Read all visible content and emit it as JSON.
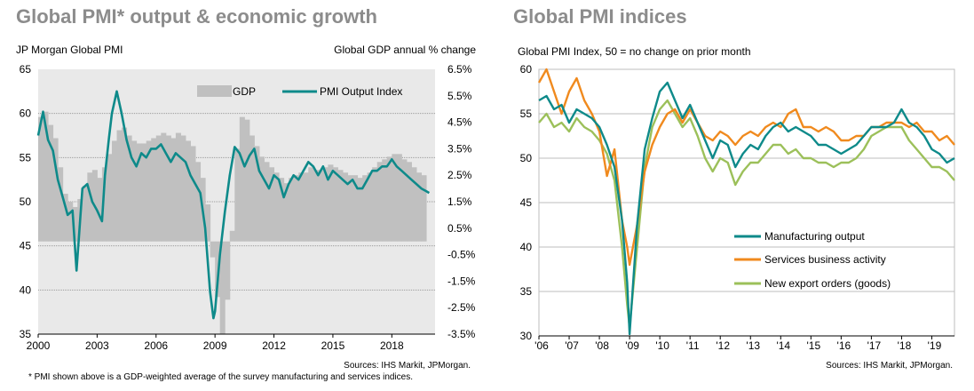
{
  "left": {
    "heading": "Global PMI* output & economic growth",
    "subtitle_left": "JP Morgan Global PMI",
    "subtitle_right": "Global GDP annual % change",
    "source": "Sources: IHS Markit, JPMorgan.",
    "footnote": "* PMI shown above is a GDP-weighted average of the survey manufacturing and services indices.",
    "colors": {
      "gdp": "#c0c0c0",
      "pmi": "#0e8a8a"
    }
  },
  "right": {
    "heading": "Global PMI indices",
    "subtitle": "Global PMI Index, 50 = no change on prior month",
    "source": "Sources: IHS Markit, JPMorgan.",
    "colors": {
      "mfg": "#0e8a8a",
      "svc": "#f08a1e",
      "exp": "#9cc05a"
    }
  },
  "chart_data": [
    {
      "type": "bar+line",
      "title": "Global PMI* output & economic growth",
      "ylabel_left": "JP Morgan Global PMI",
      "ylabel_right": "Global GDP annual % change",
      "ylim_left": [
        35,
        65
      ],
      "yticks_left": [
        "35",
        "40",
        "45",
        "50",
        "55",
        "60",
        "65"
      ],
      "ylim_right": [
        -3.5,
        6.5
      ],
      "yticks_right": [
        "-3.5%",
        "-2.5%",
        "-1.5%",
        "-0.5%",
        "0.5%",
        "1.5%",
        "2.5%",
        "3.5%",
        "4.5%",
        "5.5%",
        "6.5%"
      ],
      "xlim": [
        2000,
        2020.2
      ],
      "xticks": [
        "2000",
        "2003",
        "2006",
        "2009",
        "2012",
        "2015",
        "2018"
      ],
      "grid": "horizontal",
      "legend": [
        "GDP",
        "PMI Output Index"
      ],
      "legend_position": "top-right",
      "series": [
        {
          "name": "GDP",
          "kind": "bar",
          "x": [
            2000.0,
            2000.25,
            2000.5,
            2000.75,
            2001.0,
            2001.25,
            2001.5,
            2001.75,
            2002.0,
            2002.25,
            2002.5,
            2002.75,
            2003.0,
            2003.25,
            2003.5,
            2003.75,
            2004.0,
            2004.25,
            2004.5,
            2004.75,
            2005.0,
            2005.25,
            2005.5,
            2005.75,
            2006.0,
            2006.25,
            2006.5,
            2006.75,
            2007.0,
            2007.25,
            2007.5,
            2007.75,
            2008.0,
            2008.25,
            2008.5,
            2008.75,
            2009.0,
            2009.25,
            2009.5,
            2009.75,
            2010.0,
            2010.25,
            2010.5,
            2010.75,
            2011.0,
            2011.25,
            2011.5,
            2011.75,
            2012.0,
            2012.25,
            2012.5,
            2012.75,
            2013.0,
            2013.25,
            2013.5,
            2013.75,
            2014.0,
            2014.25,
            2014.5,
            2014.75,
            2015.0,
            2015.25,
            2015.5,
            2015.75,
            2016.0,
            2016.25,
            2016.5,
            2016.75,
            2017.0,
            2017.25,
            2017.5,
            2017.75,
            2018.0,
            2018.25,
            2018.5,
            2018.75,
            2019.0,
            2019.25,
            2019.5
          ],
          "values": [
            4.7,
            4.9,
            4.4,
            3.9,
            2.8,
            1.8,
            1.5,
            1.3,
            1.6,
            2.1,
            2.6,
            2.7,
            2.4,
            2.8,
            3.3,
            3.8,
            4.2,
            4.3,
            4.0,
            3.8,
            3.7,
            3.7,
            3.8,
            3.9,
            4.0,
            4.1,
            4.0,
            3.9,
            4.1,
            4.0,
            3.8,
            3.6,
            3.0,
            2.4,
            1.4,
            -0.6,
            -2.1,
            -3.5,
            -2.2,
            0.4,
            3.5,
            4.7,
            4.6,
            4.0,
            3.6,
            3.2,
            3.0,
            2.8,
            2.6,
            2.4,
            2.2,
            2.4,
            2.5,
            2.6,
            2.6,
            2.8,
            2.7,
            2.7,
            2.8,
            2.9,
            2.8,
            2.7,
            2.6,
            2.5,
            2.5,
            2.4,
            2.5,
            2.6,
            2.8,
            3.0,
            3.1,
            3.2,
            3.3,
            3.3,
            3.1,
            3.0,
            2.8,
            2.6,
            2.5
          ]
        },
        {
          "name": "PMI Output Index",
          "kind": "line",
          "x": [
            2000.0,
            2000.25,
            2000.5,
            2000.75,
            2001.0,
            2001.25,
            2001.5,
            2001.75,
            2001.95,
            2002.25,
            2002.5,
            2002.75,
            2003.0,
            2003.25,
            2003.4,
            2003.6,
            2003.75,
            2004.0,
            2004.25,
            2004.5,
            2004.75,
            2005.0,
            2005.25,
            2005.5,
            2005.75,
            2006.0,
            2006.25,
            2006.5,
            2006.75,
            2007.0,
            2007.25,
            2007.5,
            2007.75,
            2008.0,
            2008.25,
            2008.5,
            2008.75,
            2008.92,
            2009.0,
            2009.25,
            2009.5,
            2009.75,
            2010.0,
            2010.25,
            2010.5,
            2010.75,
            2011.0,
            2011.25,
            2011.5,
            2011.75,
            2012.0,
            2012.25,
            2012.5,
            2012.75,
            2013.0,
            2013.25,
            2013.5,
            2013.75,
            2014.0,
            2014.25,
            2014.5,
            2014.75,
            2015.0,
            2015.25,
            2015.5,
            2015.75,
            2016.0,
            2016.25,
            2016.5,
            2016.75,
            2017.0,
            2017.25,
            2017.5,
            2017.75,
            2018.0,
            2018.25,
            2018.5,
            2018.75,
            2019.0,
            2019.25,
            2019.5,
            2019.75,
            2019.9
          ],
          "values": [
            57.5,
            60.2,
            57.0,
            55.8,
            52.5,
            50.5,
            48.5,
            49.0,
            42.2,
            51.5,
            52.0,
            50.0,
            49.0,
            47.8,
            53.0,
            57.2,
            60.0,
            62.5,
            60.0,
            57.0,
            55.0,
            54.0,
            55.5,
            55.0,
            56.0,
            56.0,
            56.5,
            55.5,
            54.5,
            55.5,
            55.0,
            54.5,
            53.0,
            52.0,
            51.0,
            47.0,
            39.8,
            36.8,
            37.6,
            44.0,
            48.8,
            53.0,
            56.2,
            55.5,
            54.0,
            55.2,
            56.0,
            53.5,
            52.5,
            51.5,
            53.0,
            52.5,
            50.5,
            52.0,
            53.0,
            52.5,
            53.5,
            54.5,
            54.0,
            53.0,
            54.0,
            52.5,
            53.5,
            53.0,
            52.5,
            52.0,
            52.5,
            51.5,
            51.5,
            52.5,
            53.5,
            53.5,
            54.0,
            54.0,
            54.8,
            54.0,
            53.5,
            53.0,
            52.5,
            52.0,
            51.5,
            51.2,
            51.0
          ]
        }
      ]
    },
    {
      "type": "line",
      "title": "Global PMI indices",
      "ylabel": "Global PMI Index, 50 = no change on prior month",
      "ylim": [
        30,
        60
      ],
      "yticks": [
        "30",
        "35",
        "40",
        "45",
        "50",
        "55",
        "60"
      ],
      "xlim": [
        2006,
        2019.75
      ],
      "xticks": [
        "'06",
        "'07",
        "'08",
        "'09",
        "'10",
        "'11",
        "'12",
        "'13",
        "'14",
        "'15",
        "'16",
        "'17",
        "'18",
        "'19"
      ],
      "grid": "horizontal",
      "legend_position": "bottom-right",
      "series": [
        {
          "name": "Manufacturing output",
          "x": [
            2006.0,
            2006.25,
            2006.5,
            2006.75,
            2007.0,
            2007.25,
            2007.5,
            2007.75,
            2008.0,
            2008.25,
            2008.5,
            2008.75,
            2008.92,
            2009.0,
            2009.25,
            2009.5,
            2009.75,
            2010.0,
            2010.25,
            2010.5,
            2010.75,
            2011.0,
            2011.25,
            2011.5,
            2011.75,
            2012.0,
            2012.25,
            2012.5,
            2012.75,
            2013.0,
            2013.25,
            2013.5,
            2013.75,
            2014.0,
            2014.25,
            2014.5,
            2014.75,
            2015.0,
            2015.25,
            2015.5,
            2015.75,
            2016.0,
            2016.25,
            2016.5,
            2016.75,
            2017.0,
            2017.25,
            2017.5,
            2017.75,
            2018.0,
            2018.25,
            2018.5,
            2018.75,
            2019.0,
            2019.25,
            2019.5,
            2019.75
          ],
          "values": [
            56.5,
            57.0,
            55.5,
            56.0,
            54.0,
            55.5,
            55.0,
            54.5,
            53.5,
            51.5,
            49.0,
            43.0,
            36.0,
            30.2,
            42.5,
            51.0,
            54.5,
            57.5,
            58.5,
            56.5,
            54.5,
            56.0,
            54.0,
            52.0,
            50.0,
            52.0,
            51.5,
            49.0,
            50.5,
            51.5,
            51.0,
            52.5,
            53.5,
            54.0,
            53.0,
            53.5,
            53.0,
            52.5,
            51.5,
            51.5,
            51.0,
            50.5,
            51.0,
            51.5,
            52.5,
            53.5,
            53.5,
            53.5,
            54.0,
            55.5,
            54.0,
            53.5,
            52.5,
            51.0,
            50.5,
            49.5,
            50.0
          ]
        },
        {
          "name": "Services business activity",
          "x": [
            2006.0,
            2006.25,
            2006.5,
            2006.75,
            2007.0,
            2007.25,
            2007.5,
            2007.75,
            2008.0,
            2008.25,
            2008.5,
            2008.75,
            2008.92,
            2009.0,
            2009.25,
            2009.5,
            2009.75,
            2010.0,
            2010.25,
            2010.5,
            2010.75,
            2011.0,
            2011.25,
            2011.5,
            2011.75,
            2012.0,
            2012.25,
            2012.5,
            2012.75,
            2013.0,
            2013.25,
            2013.5,
            2013.75,
            2014.0,
            2014.25,
            2014.5,
            2014.75,
            2015.0,
            2015.25,
            2015.5,
            2015.75,
            2016.0,
            2016.25,
            2016.5,
            2016.75,
            2017.0,
            2017.25,
            2017.5,
            2017.75,
            2018.0,
            2018.25,
            2018.5,
            2018.75,
            2019.0,
            2019.25,
            2019.5,
            2019.75
          ],
          "values": [
            58.5,
            60.0,
            57.5,
            55.0,
            57.5,
            59.0,
            56.5,
            55.0,
            53.0,
            48.0,
            51.0,
            43.0,
            40.0,
            38.0,
            42.5,
            48.5,
            51.5,
            53.5,
            55.0,
            55.5,
            54.0,
            55.5,
            54.0,
            52.5,
            52.0,
            53.0,
            52.5,
            51.5,
            52.5,
            53.0,
            52.5,
            53.5,
            54.0,
            53.5,
            55.0,
            55.5,
            53.5,
            53.5,
            53.0,
            53.5,
            53.0,
            52.0,
            52.0,
            52.5,
            52.5,
            53.5,
            53.5,
            54.0,
            54.0,
            54.0,
            53.5,
            54.0,
            53.0,
            53.0,
            52.0,
            52.5,
            51.5
          ]
        },
        {
          "name": "New export orders (goods)",
          "x": [
            2006.0,
            2006.25,
            2006.5,
            2006.75,
            2007.0,
            2007.25,
            2007.5,
            2007.75,
            2008.0,
            2008.25,
            2008.5,
            2008.75,
            2008.92,
            2009.0,
            2009.25,
            2009.5,
            2009.75,
            2010.0,
            2010.25,
            2010.5,
            2010.75,
            2011.0,
            2011.25,
            2011.5,
            2011.75,
            2012.0,
            2012.25,
            2012.5,
            2012.75,
            2013.0,
            2013.25,
            2013.5,
            2013.75,
            2014.0,
            2014.25,
            2014.5,
            2014.75,
            2015.0,
            2015.25,
            2015.5,
            2015.75,
            2016.0,
            2016.25,
            2016.5,
            2016.75,
            2017.0,
            2017.25,
            2017.5,
            2017.75,
            2018.0,
            2018.25,
            2018.5,
            2018.75,
            2019.0,
            2019.25,
            2019.5,
            2019.75
          ],
          "values": [
            54.0,
            55.0,
            53.5,
            54.0,
            53.0,
            54.5,
            53.5,
            53.0,
            52.0,
            50.5,
            47.5,
            40.0,
            33.5,
            31.0,
            40.0,
            49.0,
            53.5,
            55.5,
            56.5,
            55.0,
            53.5,
            54.5,
            52.5,
            50.0,
            48.5,
            50.0,
            49.5,
            47.0,
            48.5,
            49.5,
            49.5,
            50.5,
            51.5,
            51.5,
            50.5,
            51.0,
            50.0,
            50.0,
            49.5,
            49.5,
            49.0,
            49.5,
            49.5,
            50.0,
            51.0,
            52.5,
            53.0,
            53.5,
            53.5,
            53.5,
            52.0,
            51.0,
            50.0,
            49.0,
            49.0,
            48.5,
            47.5
          ]
        }
      ]
    }
  ]
}
